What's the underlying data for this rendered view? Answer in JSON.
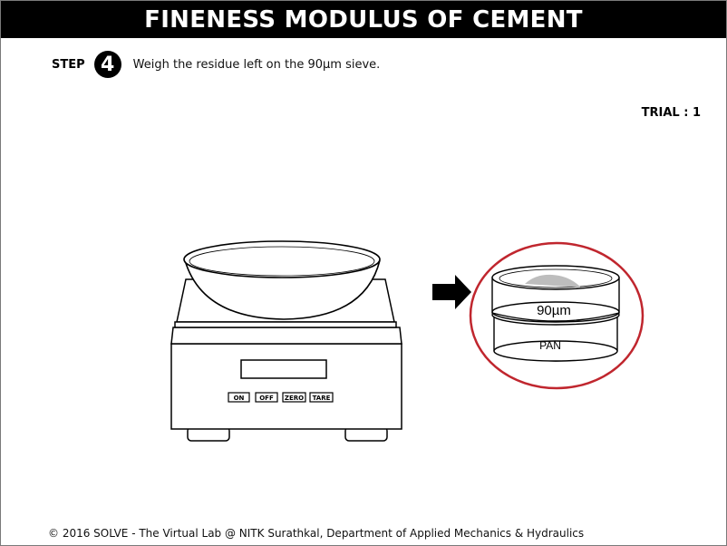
{
  "header": {
    "title": "FINENESS MODULUS OF CEMENT"
  },
  "step": {
    "label": "STEP",
    "number": "4",
    "instruction": "Weigh the residue left on the 90µm sieve."
  },
  "trial": {
    "label": "TRIAL : 1"
  },
  "balance": {
    "buttons": {
      "on": "ON",
      "off": "OFF",
      "zero": "ZERO",
      "tare": "TARE"
    }
  },
  "sieve": {
    "top_label": "90µm",
    "bottom_label": "PAN",
    "highlight_color": "#c0262e"
  },
  "footer": {
    "text": "© 2016 SOLVE - The Virtual Lab @ NITK Surathkal, Department of Applied Mechanics & Hydraulics"
  }
}
